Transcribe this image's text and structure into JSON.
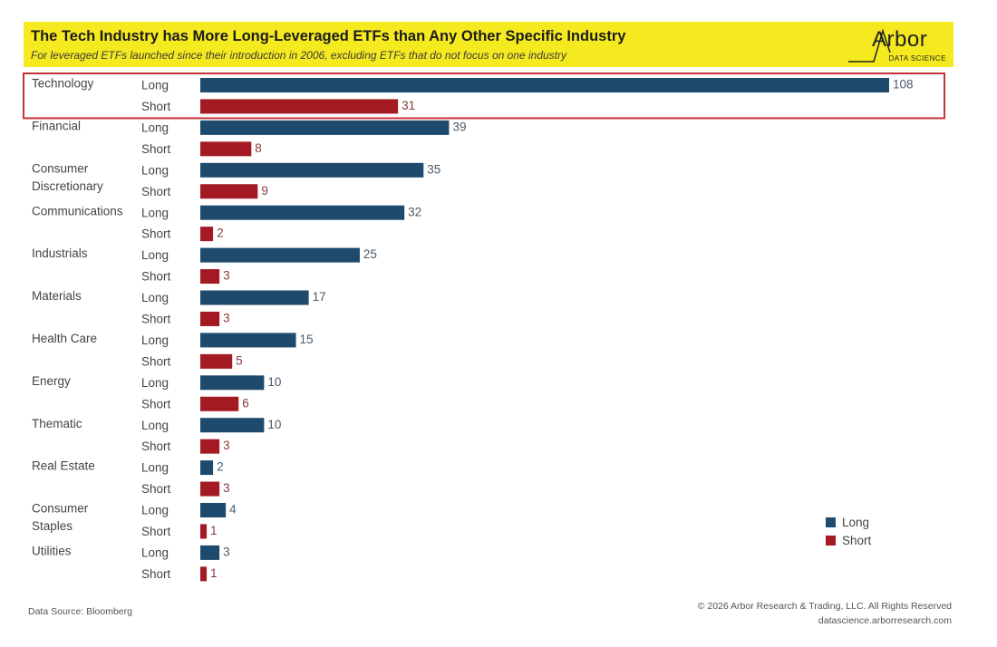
{
  "header": {
    "title": "The Tech Industry has More Long-Leveraged ETFs than Any Other Specific Industry",
    "subtitle": "For leveraged ETFs launched since their introduction in 2006, excluding ETFs that do not focus on one industry",
    "logo_text": "Arbor",
    "logo_subtext": "DATA SCIENCE"
  },
  "footer": {
    "source": "Data Source: Bloomberg",
    "copyright": "© 2026 Arbor Research & Trading, LLC. All Rights Reserved",
    "website": "datascience.arborresearch.com"
  },
  "colors": {
    "long": "#1e4a6e",
    "short": "#a31a22",
    "header_bg": "#f5ea1f",
    "highlight": "#c8313a"
  },
  "chart_data": {
    "type": "bar",
    "orientation": "horizontal",
    "title": "The Tech Industry has More Long-Leveraged ETFs than Any Other Specific Industry",
    "categories": [
      {
        "label": [
          "Technology"
        ],
        "long": 108,
        "short": 31,
        "highlighted": true
      },
      {
        "label": [
          "Financial"
        ],
        "long": 39,
        "short": 8
      },
      {
        "label": [
          "Consumer",
          "Discretionary"
        ],
        "long": 35,
        "short": 9
      },
      {
        "label": [
          "Communications"
        ],
        "long": 32,
        "short": 2
      },
      {
        "label": [
          "Industrials"
        ],
        "long": 25,
        "short": 3
      },
      {
        "label": [
          "Materials"
        ],
        "long": 17,
        "short": 3
      },
      {
        "label": [
          "Health Care"
        ],
        "long": 15,
        "short": 5
      },
      {
        "label": [
          "Energy"
        ],
        "long": 10,
        "short": 6
      },
      {
        "label": [
          "Thematic"
        ],
        "long": 10,
        "short": 3
      },
      {
        "label": [
          "Real Estate"
        ],
        "long": 2,
        "short": 3
      },
      {
        "label": [
          "Consumer",
          "Staples"
        ],
        "long": 4,
        "short": 1
      },
      {
        "label": [
          "Utilities"
        ],
        "long": 3,
        "short": 1
      }
    ],
    "series": [
      {
        "name": "Long",
        "key": "long"
      },
      {
        "name": "Short",
        "key": "short"
      }
    ],
    "legend": {
      "position": "bottom-right",
      "items": [
        "Long",
        "Short"
      ]
    },
    "xlim": [
      0,
      108
    ],
    "xlabel": "",
    "ylabel": ""
  }
}
